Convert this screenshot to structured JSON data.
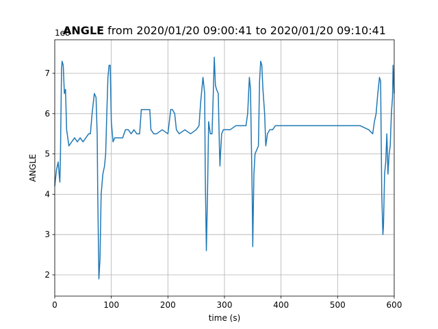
{
  "chart_data": {
    "type": "line",
    "title_bold": "ANGLE",
    "title": "from 2020/01/20 09:00:41 to 2020/01/20 09:10:41",
    "xlabel": "time (s)",
    "ylabel": "ANGLE",
    "y_offset_label": "1e8",
    "x": [
      0,
      3,
      6,
      9,
      10,
      12,
      13,
      15,
      17,
      19,
      21,
      25,
      30,
      35,
      40,
      45,
      50,
      55,
      60,
      63,
      66,
      70,
      73,
      75,
      76,
      78,
      80,
      82,
      85,
      88,
      90,
      92,
      94,
      96,
      98,
      100,
      103,
      106,
      110,
      115,
      120,
      125,
      130,
      135,
      140,
      145,
      150,
      153,
      156,
      160,
      165,
      168,
      170,
      175,
      180,
      190,
      200,
      205,
      208,
      212,
      215,
      220,
      230,
      240,
      250,
      255,
      258,
      262,
      265,
      266,
      268,
      270,
      272,
      275,
      278,
      280,
      282,
      284,
      286,
      289,
      291,
      292,
      293,
      295,
      298,
      300,
      310,
      320,
      330,
      338,
      341,
      344,
      346,
      349,
      350,
      352,
      354,
      357,
      360,
      362,
      364,
      366,
      368,
      371,
      373,
      376,
      380,
      385,
      390,
      400,
      420,
      440,
      460,
      480,
      500,
      520,
      540,
      555,
      562,
      565,
      568,
      571,
      574,
      576,
      578,
      580,
      581,
      583,
      585,
      587,
      589,
      591,
      593,
      595,
      597,
      598,
      600
    ],
    "series": [
      {
        "name": "ANGLE",
        "color": "#1f77b4",
        "values": [
          4.2,
          4.6,
          4.8,
          4.3,
          4.9,
          7.1,
          7.3,
          7.2,
          6.5,
          6.6,
          5.6,
          5.2,
          5.3,
          5.4,
          5.3,
          5.4,
          5.3,
          5.4,
          5.5,
          5.5,
          6.0,
          6.5,
          6.4,
          5.5,
          4.0,
          1.9,
          2.4,
          4.0,
          4.5,
          4.7,
          5.0,
          6.0,
          6.9,
          7.2,
          7.2,
          5.8,
          5.3,
          5.4,
          5.4,
          5.4,
          5.4,
          5.6,
          5.6,
          5.5,
          5.6,
          5.5,
          5.5,
          6.1,
          6.1,
          6.1,
          6.1,
          6.1,
          5.6,
          5.5,
          5.5,
          5.6,
          5.5,
          6.1,
          6.1,
          6.0,
          5.6,
          5.5,
          5.6,
          5.5,
          5.6,
          5.7,
          6.3,
          6.9,
          6.5,
          4.5,
          2.6,
          4.0,
          5.8,
          5.5,
          5.5,
          6.4,
          7.4,
          6.7,
          6.6,
          6.5,
          5.2,
          4.7,
          5.0,
          5.5,
          5.6,
          5.6,
          5.6,
          5.7,
          5.7,
          5.7,
          6.0,
          6.9,
          6.6,
          4.0,
          2.7,
          4.5,
          5.0,
          5.1,
          5.2,
          6.8,
          7.3,
          7.2,
          6.6,
          6.0,
          5.2,
          5.5,
          5.6,
          5.6,
          5.7,
          5.7,
          5.7,
          5.7,
          5.7,
          5.7,
          5.7,
          5.7,
          5.7,
          5.6,
          5.5,
          5.8,
          6.0,
          6.5,
          6.9,
          6.8,
          4.0,
          3.0,
          3.2,
          4.5,
          4.8,
          5.5,
          4.5,
          5.0,
          5.2,
          6.0,
          6.4,
          7.2,
          6.5
        ]
      }
    ],
    "xlim": [
      0,
      600
    ],
    "xticks": [
      0,
      100,
      200,
      300,
      400,
      500,
      600
    ],
    "ylim": [
      1.473,
      7.833
    ],
    "yticks": [
      2,
      3,
      4,
      5,
      6,
      7
    ],
    "grid": true
  }
}
